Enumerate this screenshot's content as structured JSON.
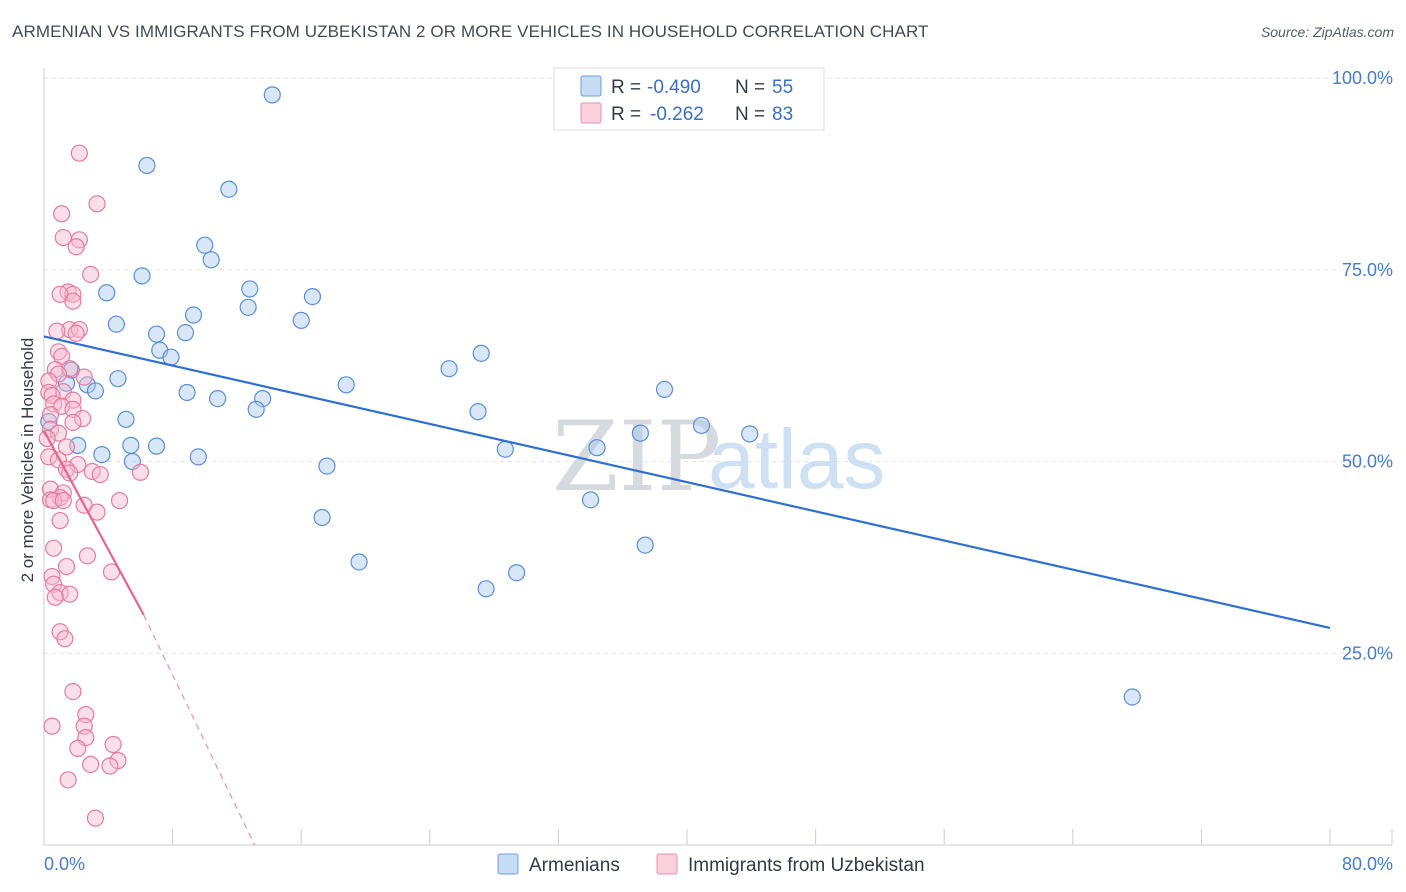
{
  "header": {
    "title": "ARMENIAN VS IMMIGRANTS FROM UZBEKISTAN 2 OR MORE VEHICLES IN HOUSEHOLD CORRELATION CHART",
    "source": "Source: ZipAtlas.com"
  },
  "watermark": {
    "zip": "ZIP",
    "atlas": "atlas"
  },
  "legend": {
    "rows": [
      {
        "r_label": "R =",
        "r_value": "-0.490",
        "n_label": "N =",
        "n_value": "55",
        "color": "#a9c8ee"
      },
      {
        "r_label": "R =",
        "r_value": "-0.262",
        "n_label": "N =",
        "n_value": "83",
        "color": "#f6b8cb"
      }
    ]
  },
  "bottom_legend": [
    "Armenians",
    "Immigrants from Uzbekistan"
  ],
  "chart_data": {
    "type": "scatter",
    "title": "ARMENIAN VS IMMIGRANTS FROM UZBEKISTAN 2 OR MORE VEHICLES IN HOUSEHOLD CORRELATION CHART",
    "xlabel": "",
    "ylabel": "2 or more Vehicles in Household",
    "xlim": [
      0,
      80
    ],
    "ylim": [
      0,
      100
    ],
    "x_tick_labels": [
      "0.0%",
      "80.0%"
    ],
    "y_ticks": [
      25,
      50,
      75,
      100
    ],
    "y_tick_labels": [
      "25.0%",
      "50.0%",
      "75.0%",
      "100.0%"
    ],
    "grid": true,
    "series": [
      {
        "name": "Armenians",
        "color": "#a9c8ee",
        "stroke": "#5b8fd4",
        "points": [
          [
            14.2,
            97.8
          ],
          [
            6.4,
            88.6
          ],
          [
            11.5,
            85.5
          ],
          [
            10.0,
            78.2
          ],
          [
            10.4,
            76.3
          ],
          [
            6.1,
            74.2
          ],
          [
            3.9,
            72.0
          ],
          [
            12.8,
            72.5
          ],
          [
            16.7,
            71.5
          ],
          [
            12.7,
            70.1
          ],
          [
            9.3,
            69.1
          ],
          [
            16.0,
            68.4
          ],
          [
            4.5,
            67.9
          ],
          [
            7.0,
            66.6
          ],
          [
            8.8,
            66.8
          ],
          [
            7.2,
            64.5
          ],
          [
            7.9,
            63.6
          ],
          [
            27.2,
            64.1
          ],
          [
            1.7,
            61.9
          ],
          [
            25.2,
            62.1
          ],
          [
            1.4,
            60.2
          ],
          [
            2.7,
            60.0
          ],
          [
            4.6,
            60.8
          ],
          [
            3.2,
            59.2
          ],
          [
            18.8,
            60.0
          ],
          [
            38.6,
            59.4
          ],
          [
            8.9,
            59.0
          ],
          [
            10.8,
            58.2
          ],
          [
            13.6,
            58.2
          ],
          [
            13.2,
            56.8
          ],
          [
            27.0,
            56.5
          ],
          [
            5.1,
            55.5
          ],
          [
            0.3,
            55.2
          ],
          [
            40.9,
            54.7
          ],
          [
            37.1,
            53.7
          ],
          [
            43.9,
            53.6
          ],
          [
            2.1,
            52.1
          ],
          [
            5.4,
            52.1
          ],
          [
            7.0,
            52.0
          ],
          [
            28.7,
            51.6
          ],
          [
            34.4,
            51.8
          ],
          [
            3.6,
            50.9
          ],
          [
            9.6,
            50.6
          ],
          [
            5.5,
            50.0
          ],
          [
            17.6,
            49.4
          ],
          [
            34.0,
            45.0
          ],
          [
            17.3,
            42.7
          ],
          [
            37.4,
            39.1
          ],
          [
            19.6,
            36.9
          ],
          [
            29.4,
            35.5
          ],
          [
            27.5,
            33.4
          ],
          [
            67.7,
            19.3
          ]
        ],
        "trend": {
          "x": [
            0.0,
            80.0
          ],
          "y": [
            66.3,
            28.3
          ]
        }
      },
      {
        "name": "Immigrants from Uzbekistan",
        "color": "#f6b8cb",
        "stroke": "#e27da0",
        "points": [
          [
            2.2,
            90.2
          ],
          [
            3.3,
            83.6
          ],
          [
            1.1,
            82.3
          ],
          [
            1.2,
            79.2
          ],
          [
            2.2,
            78.9
          ],
          [
            2.0,
            78.0
          ],
          [
            2.9,
            74.4
          ],
          [
            1.5,
            72.1
          ],
          [
            1.8,
            71.8
          ],
          [
            1.0,
            71.8
          ],
          [
            1.8,
            70.9
          ],
          [
            1.6,
            67.2
          ],
          [
            2.2,
            67.2
          ],
          [
            0.8,
            67.0
          ],
          [
            2.0,
            66.7
          ],
          [
            0.9,
            64.3
          ],
          [
            1.1,
            63.7
          ],
          [
            0.7,
            62.0
          ],
          [
            1.6,
            62.1
          ],
          [
            0.9,
            61.4
          ],
          [
            2.5,
            61.0
          ],
          [
            0.3,
            60.5
          ],
          [
            1.2,
            59.1
          ],
          [
            0.3,
            59.0
          ],
          [
            0.5,
            58.6
          ],
          [
            1.8,
            58.0
          ],
          [
            0.6,
            57.5
          ],
          [
            1.1,
            57.2
          ],
          [
            1.8,
            56.8
          ],
          [
            0.4,
            56.1
          ],
          [
            2.4,
            55.6
          ],
          [
            1.8,
            55.1
          ],
          [
            0.4,
            54.2
          ],
          [
            0.9,
            53.7
          ],
          [
            0.2,
            53.0
          ],
          [
            1.4,
            51.9
          ],
          [
            0.3,
            50.6
          ],
          [
            0.9,
            50.2
          ],
          [
            2.1,
            49.6
          ],
          [
            1.4,
            49.0
          ],
          [
            1.6,
            48.5
          ],
          [
            3.0,
            48.7
          ],
          [
            3.5,
            48.3
          ],
          [
            6.0,
            48.6
          ],
          [
            0.4,
            46.4
          ],
          [
            1.2,
            45.9
          ],
          [
            1.0,
            45.3
          ],
          [
            0.4,
            45.0
          ],
          [
            0.6,
            44.9
          ],
          [
            1.2,
            44.9
          ],
          [
            4.7,
            44.9
          ],
          [
            2.5,
            44.3
          ],
          [
            3.3,
            43.4
          ],
          [
            1.0,
            42.3
          ],
          [
            0.6,
            38.7
          ],
          [
            2.7,
            37.7
          ],
          [
            1.4,
            36.3
          ],
          [
            4.2,
            35.6
          ],
          [
            0.5,
            35.0
          ],
          [
            0.6,
            34.0
          ],
          [
            1.0,
            32.9
          ],
          [
            1.6,
            32.7
          ],
          [
            0.7,
            32.3
          ],
          [
            1.0,
            27.8
          ],
          [
            1.3,
            26.9
          ],
          [
            1.8,
            20.0
          ],
          [
            0.5,
            15.5
          ],
          [
            2.6,
            17.0
          ],
          [
            2.5,
            15.5
          ],
          [
            2.6,
            14.0
          ],
          [
            4.3,
            13.1
          ],
          [
            2.1,
            12.6
          ],
          [
            4.6,
            11.0
          ],
          [
            2.9,
            10.5
          ],
          [
            4.1,
            10.3
          ],
          [
            1.5,
            8.5
          ],
          [
            3.2,
            3.5
          ]
        ],
        "trend": {
          "x": [
            0.0,
            6.2
          ],
          "y": [
            54.0,
            30.0
          ]
        },
        "trend_dashed": {
          "x": [
            6.2,
            13.1
          ],
          "y": [
            30.0,
            0.0
          ]
        }
      }
    ]
  }
}
